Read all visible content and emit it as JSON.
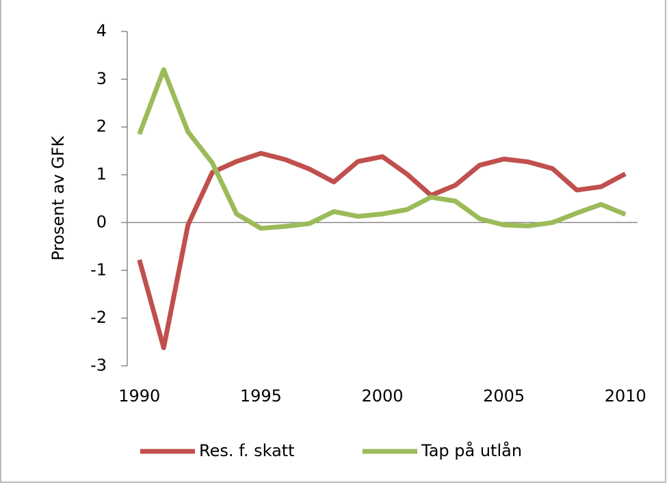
{
  "chart_data": {
    "type": "line",
    "y_label": "Prosent av GFK",
    "x": [
      1990,
      1991,
      1992,
      1993,
      1994,
      1995,
      1996,
      1997,
      1998,
      1999,
      2000,
      2001,
      2002,
      2003,
      2004,
      2005,
      2006,
      2007,
      2008,
      2009,
      2010
    ],
    "series": [
      {
        "name": "Res. f. skatt",
        "color": "#c0504d",
        "values": [
          -0.78,
          -2.62,
          -0.05,
          1.05,
          1.28,
          1.45,
          1.32,
          1.12,
          0.85,
          1.28,
          1.38,
          1.02,
          0.57,
          0.78,
          1.2,
          1.33,
          1.27,
          1.13,
          0.68,
          0.75,
          1.02
        ]
      },
      {
        "name": "Tap på utlån",
        "color": "#9bbb59",
        "values": [
          1.85,
          3.2,
          1.9,
          1.25,
          0.18,
          -0.12,
          -0.08,
          -0.02,
          0.23,
          0.13,
          0.18,
          0.27,
          0.53,
          0.45,
          0.08,
          -0.05,
          -0.07,
          0.0,
          0.2,
          0.38,
          0.17
        ]
      }
    ],
    "xlim": [
      1989.5,
      2010.5
    ],
    "xticks": [
      1990,
      1995,
      2000,
      2005,
      2010
    ],
    "ylim": [
      -3,
      4
    ],
    "yticks": [
      -3,
      -2,
      -1,
      0,
      1,
      2,
      3,
      4
    ],
    "legend": "bottom"
  }
}
